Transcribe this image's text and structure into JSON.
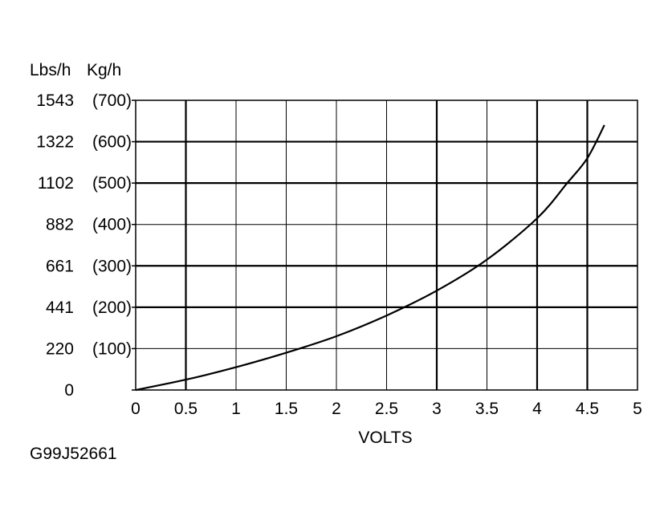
{
  "chart_data": {
    "type": "line",
    "title": "",
    "xlabel": "VOLTS",
    "ylabel_primary": "Lbs/h",
    "ylabel_secondary": "Kg/h",
    "xlim": [
      0,
      5
    ],
    "ylim": [
      0,
      700
    ],
    "grid": true,
    "x_ticks": [
      {
        "value": 0,
        "label": "0"
      },
      {
        "value": 0.5,
        "label": "0.5"
      },
      {
        "value": 1,
        "label": "1"
      },
      {
        "value": 1.5,
        "label": "1.5"
      },
      {
        "value": 2,
        "label": "2"
      },
      {
        "value": 2.5,
        "label": "2.5"
      },
      {
        "value": 3,
        "label": "3"
      },
      {
        "value": 3.5,
        "label": "3.5"
      },
      {
        "value": 4,
        "label": "4"
      },
      {
        "value": 4.5,
        "label": "4.5"
      },
      {
        "value": 5,
        "label": "5"
      }
    ],
    "y_ticks": [
      {
        "value": 0,
        "lbs": "0",
        "kg": ""
      },
      {
        "value": 100,
        "lbs": "220",
        "kg": "(100)"
      },
      {
        "value": 200,
        "lbs": "441",
        "kg": "(200)"
      },
      {
        "value": 300,
        "lbs": "661",
        "kg": "(300)"
      },
      {
        "value": 400,
        "lbs": "882",
        "kg": "(400)"
      },
      {
        "value": 500,
        "lbs": "1102",
        "kg": "(500)"
      },
      {
        "value": 600,
        "lbs": "1322",
        "kg": "(600)"
      },
      {
        "value": 700,
        "lbs": "1543",
        "kg": "(700)"
      }
    ],
    "reference_lines": [
      {
        "axis": "x",
        "value": 3,
        "from": 0,
        "to": 700
      },
      {
        "axis": "x",
        "value": 4.5,
        "from": 0,
        "to": 700
      },
      {
        "axis": "y",
        "value": 300,
        "from": 0,
        "to": 5
      },
      {
        "axis": "y",
        "value": 500,
        "from": 0,
        "to": 5
      },
      {
        "axis": "y",
        "value": 600,
        "from": 0,
        "to": 5
      },
      {
        "axis": "y",
        "value": 200,
        "from": 0,
        "to": 5
      },
      {
        "axis": "x",
        "value": 0.5,
        "from": 0,
        "to": 700
      },
      {
        "axis": "x",
        "value": 4,
        "from": 0,
        "to": 700
      }
    ],
    "series": [
      {
        "x": [
          0,
          0.5,
          1,
          1.5,
          2,
          2.5,
          3,
          3.5,
          4,
          4.3,
          4.5,
          4.67
        ],
        "y": [
          0,
          25,
          55,
          90,
          130,
          180,
          240,
          315,
          415,
          500,
          560,
          640
        ]
      }
    ]
  },
  "figure_code": "G99J52661"
}
